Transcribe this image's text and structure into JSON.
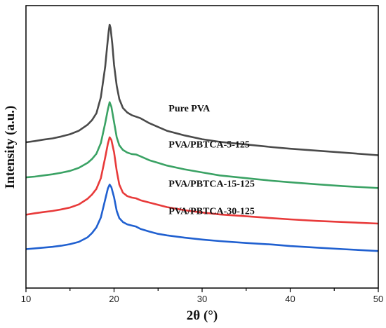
{
  "chart_data": {
    "type": "line",
    "title": "",
    "xlabel": "2θ (°)",
    "ylabel": "Intensity (a.u.)",
    "xlim": [
      10,
      50
    ],
    "x_ticks": [
      "10",
      "20",
      "30",
      "40",
      "50"
    ],
    "y_ticks_shown": false,
    "grid": false,
    "legend": "none (series labeled inline above each curve)",
    "series": [
      {
        "name": "Pure PVA",
        "color": "#4a4a4a",
        "x": [
          10,
          11,
          12,
          13,
          14,
          15,
          16,
          17,
          17.5,
          18,
          18.5,
          19,
          19.2,
          19.4,
          19.5,
          19.6,
          19.8,
          20,
          20.3,
          20.6,
          21,
          21.5,
          22,
          23,
          24,
          25,
          26,
          28,
          30,
          32,
          35,
          38,
          40,
          43,
          46,
          50
        ],
        "y": [
          0.92,
          0.95,
          0.99,
          1.02,
          1.07,
          1.13,
          1.22,
          1.38,
          1.5,
          1.68,
          2.1,
          2.9,
          3.4,
          3.85,
          4.0,
          3.92,
          3.5,
          2.95,
          2.4,
          2.05,
          1.82,
          1.7,
          1.63,
          1.55,
          1.42,
          1.32,
          1.22,
          1.1,
          1.0,
          0.93,
          0.86,
          0.79,
          0.75,
          0.7,
          0.65,
          0.58
        ]
      },
      {
        "name": "PVA/PBTCA-5-125",
        "color": "#3aa264",
        "x": [
          10,
          11,
          12,
          13,
          14,
          15,
          16,
          17,
          17.5,
          18,
          18.5,
          19,
          19.3,
          19.5,
          19.7,
          20,
          20.3,
          20.6,
          21,
          21.5,
          22,
          22.5,
          23,
          24,
          25,
          26,
          28,
          30,
          32,
          35,
          38,
          40,
          43,
          46,
          50
        ],
        "y": [
          0.0,
          0.02,
          0.05,
          0.08,
          0.12,
          0.17,
          0.25,
          0.38,
          0.48,
          0.62,
          0.9,
          1.42,
          1.78,
          1.97,
          1.85,
          1.45,
          1.05,
          0.84,
          0.72,
          0.65,
          0.61,
          0.6,
          0.55,
          0.45,
          0.38,
          0.31,
          0.21,
          0.13,
          0.05,
          -0.02,
          -0.09,
          -0.13,
          -0.18,
          -0.23,
          -0.28
        ]
      },
      {
        "name": "PVA/PBTCA-15-125",
        "color": "#e83a3a",
        "x": [
          10,
          11,
          12,
          13,
          14,
          15,
          16,
          17,
          17.5,
          18,
          18.5,
          19,
          19.3,
          19.5,
          19.7,
          20,
          20.3,
          20.6,
          21,
          21.5,
          22,
          22.5,
          23,
          24,
          25,
          26,
          28,
          30,
          32,
          35,
          38,
          40,
          43,
          46,
          50
        ],
        "y": [
          -0.98,
          -0.94,
          -0.91,
          -0.88,
          -0.84,
          -0.79,
          -0.71,
          -0.56,
          -0.45,
          -0.3,
          -0.02,
          0.52,
          0.88,
          1.05,
          0.98,
          0.66,
          0.17,
          -0.19,
          -0.4,
          -0.49,
          -0.53,
          -0.55,
          -0.6,
          -0.66,
          -0.72,
          -0.78,
          -0.86,
          -0.92,
          -0.97,
          -1.02,
          -1.07,
          -1.1,
          -1.14,
          -1.17,
          -1.21
        ]
      },
      {
        "name": "PVA/PBTCA-30-125",
        "color": "#2060d0",
        "x": [
          10,
          11,
          12,
          13,
          14,
          15,
          16,
          17,
          17.5,
          18,
          18.5,
          19,
          19.3,
          19.5,
          19.7,
          20,
          20.3,
          20.6,
          21,
          21.5,
          22,
          22.5,
          23,
          24,
          25,
          26,
          28,
          30,
          32,
          35,
          38,
          40,
          43,
          46,
          50
        ],
        "y": [
          -1.88,
          -1.86,
          -1.84,
          -1.82,
          -1.79,
          -1.75,
          -1.69,
          -1.57,
          -1.46,
          -1.31,
          -1.05,
          -0.58,
          -0.29,
          -0.19,
          -0.26,
          -0.52,
          -0.88,
          -1.07,
          -1.17,
          -1.23,
          -1.26,
          -1.29,
          -1.35,
          -1.42,
          -1.48,
          -1.52,
          -1.58,
          -1.63,
          -1.67,
          -1.72,
          -1.76,
          -1.8,
          -1.84,
          -1.88,
          -1.93
        ]
      }
    ]
  }
}
